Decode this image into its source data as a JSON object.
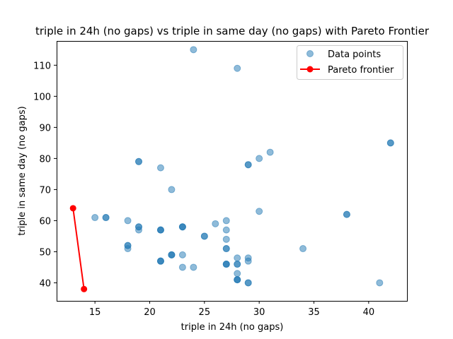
{
  "chart_data": {
    "type": "scatter",
    "title": "triple in 24h (no gaps) vs triple in same day (no gaps) with Pareto Frontier",
    "xlabel": "triple in 24h (no gaps)",
    "ylabel": "triple in same day (no gaps)",
    "xlim": [
      11.5,
      43.5
    ],
    "ylim": [
      34.2,
      117.8
    ],
    "xticks": [
      15,
      20,
      25,
      30,
      35,
      40
    ],
    "yticks": [
      40,
      50,
      60,
      70,
      80,
      90,
      100,
      110
    ],
    "legend_position": "upper right",
    "grid": false,
    "series": [
      {
        "name": "Data points",
        "kind": "scatter",
        "color": "#1f77b4",
        "alpha": 0.5,
        "points": [
          [
            15,
            61
          ],
          [
            16,
            61
          ],
          [
            16,
            61
          ],
          [
            18,
            60
          ],
          [
            18,
            52
          ],
          [
            18,
            51
          ],
          [
            18,
            52
          ],
          [
            19,
            79
          ],
          [
            19,
            79
          ],
          [
            19,
            58
          ],
          [
            19,
            57
          ],
          [
            19,
            58
          ],
          [
            21,
            77
          ],
          [
            21,
            57
          ],
          [
            21,
            57
          ],
          [
            21,
            57
          ],
          [
            21,
            47
          ],
          [
            21,
            47
          ],
          [
            21,
            47
          ],
          [
            22,
            70
          ],
          [
            22,
            49
          ],
          [
            22,
            49
          ],
          [
            22,
            49
          ],
          [
            23,
            58
          ],
          [
            23,
            58
          ],
          [
            23,
            58
          ],
          [
            23,
            49
          ],
          [
            23,
            45
          ],
          [
            24,
            115
          ],
          [
            24,
            45
          ],
          [
            25,
            55
          ],
          [
            25,
            55
          ],
          [
            26,
            59
          ],
          [
            27,
            60
          ],
          [
            27,
            57
          ],
          [
            27,
            54
          ],
          [
            27,
            51
          ],
          [
            27,
            51
          ],
          [
            27,
            46
          ],
          [
            27,
            46
          ],
          [
            27,
            46
          ],
          [
            28,
            109
          ],
          [
            28,
            48
          ],
          [
            28,
            46
          ],
          [
            28,
            46
          ],
          [
            28,
            43
          ],
          [
            28,
            41
          ],
          [
            28,
            41
          ],
          [
            28,
            41
          ],
          [
            29,
            78
          ],
          [
            29,
            78
          ],
          [
            29,
            48
          ],
          [
            29,
            47
          ],
          [
            29,
            40
          ],
          [
            29,
            40
          ],
          [
            30,
            80
          ],
          [
            30,
            63
          ],
          [
            31,
            82
          ],
          [
            34,
            51
          ],
          [
            38,
            62
          ],
          [
            38,
            62
          ],
          [
            41,
            40
          ],
          [
            42,
            85
          ],
          [
            42,
            85
          ]
        ]
      },
      {
        "name": "Pareto frontier",
        "kind": "line",
        "color": "#ff0000",
        "points": [
          [
            13,
            64
          ],
          [
            14,
            38
          ]
        ]
      }
    ]
  }
}
